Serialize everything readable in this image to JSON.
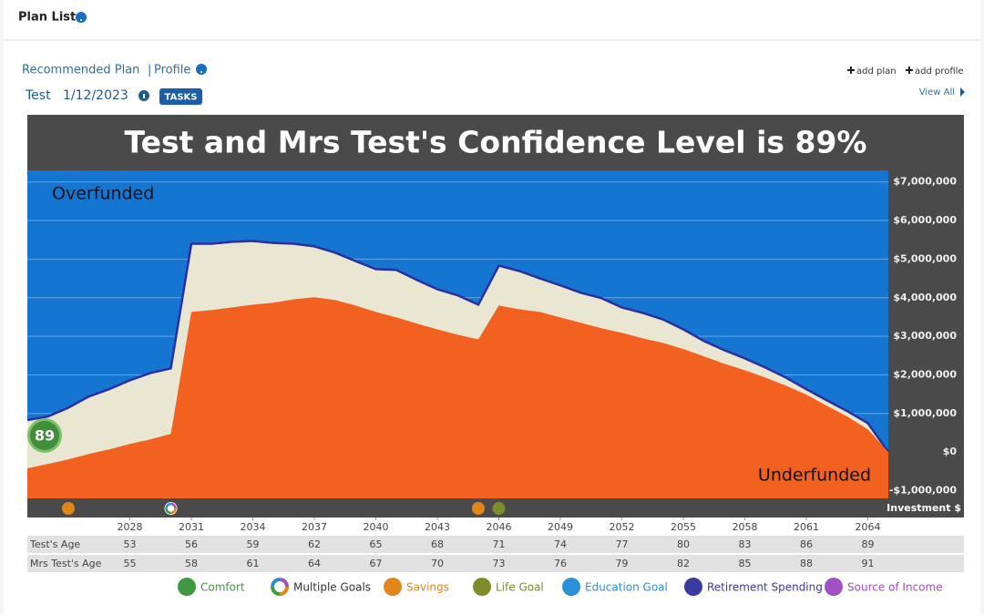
{
  "page": {
    "title": "Plan List",
    "tabs": [
      "Recommended Plan",
      "Profile"
    ],
    "actions": [
      "add plan",
      "add profile"
    ],
    "plan_name": "Test",
    "plan_date": "1/12/2023",
    "tasks": "TASKS",
    "view_all": "View All"
  },
  "chart_data": {
    "type": "area",
    "title": "Test and Mrs Test's Confidence Level is 89%",
    "background": "#1576d2",
    "x": [
      2023,
      2024,
      2025,
      2026,
      2027,
      2028,
      2029,
      2030,
      2031,
      2032,
      2033,
      2034,
      2035,
      2036,
      2037,
      2038,
      2039,
      2040,
      2041,
      2042,
      2043,
      2044,
      2045,
      2046,
      2047,
      2048,
      2049,
      2050,
      2051,
      2052,
      2053,
      2054,
      2055,
      2056,
      2057,
      2058,
      2059,
      2060,
      2061,
      2062,
      2063,
      2064,
      2065
    ],
    "series": [
      {
        "color": "#e9e7d2",
        "line": "#2b2f9e",
        "values": [
          830000,
          920000,
          1150000,
          1440000,
          1630000,
          1860000,
          2050000,
          2170000,
          5400000,
          5400000,
          5450000,
          5470000,
          5420000,
          5400000,
          5330000,
          5170000,
          4950000,
          4740000,
          4720000,
          4460000,
          4220000,
          4060000,
          3820000,
          4830000,
          4690000,
          4500000,
          4320000,
          4130000,
          3990000,
          3750000,
          3610000,
          3440000,
          3180000,
          2880000,
          2640000,
          2430000,
          2190000,
          1930000,
          1630000,
          1340000,
          1060000,
          750000,
          0
        ]
      },
      {
        "color": "#f2611f",
        "values": [
          -420000,
          -310000,
          -190000,
          -50000,
          70000,
          210000,
          330000,
          470000,
          3630000,
          3680000,
          3750000,
          3820000,
          3870000,
          3960000,
          4010000,
          3940000,
          3800000,
          3630000,
          3490000,
          3330000,
          3180000,
          3040000,
          2920000,
          3800000,
          3700000,
          3630000,
          3490000,
          3350000,
          3210000,
          3090000,
          2950000,
          2830000,
          2670000,
          2480000,
          2290000,
          2120000,
          1930000,
          1720000,
          1490000,
          1200000,
          920000,
          590000,
          0
        ]
      }
    ],
    "xlim": [
      2023,
      2065
    ],
    "xticks": [
      2028,
      2031,
      2034,
      2037,
      2040,
      2043,
      2046,
      2049,
      2052,
      2055,
      2058,
      2061,
      2064
    ],
    "ylim": [
      -1200000,
      7300000
    ],
    "yticks": [
      {
        "value": 7000000,
        "label": "$7,000,000"
      },
      {
        "value": 6000000,
        "label": "$6,000,000"
      },
      {
        "value": 5000000,
        "label": "$5,000,000"
      },
      {
        "value": 4000000,
        "label": "$4,000,000"
      },
      {
        "value": 3000000,
        "label": "$3,000,000"
      },
      {
        "value": 2000000,
        "label": "$2,000,000"
      },
      {
        "value": 1000000,
        "label": "$1,000,000"
      },
      {
        "value": 0,
        "label": "$0"
      },
      {
        "value": -1000000,
        "label": "-$1,000,000"
      }
    ],
    "grid": true,
    "y_label": "Investment $",
    "annotations": [
      "Overfunded",
      "Underfunded"
    ],
    "confidence": 89,
    "markers": [
      {
        "x": 2025,
        "color": "#e0861a"
      },
      {
        "x": 2030,
        "color": "#ffffff",
        "ring": true
      },
      {
        "x": 2045,
        "color": "#e0861a"
      },
      {
        "x": 2046,
        "color": "#7f8c2a"
      }
    ],
    "table": {
      "rows": [
        {
          "label": "Test's Age",
          "values": [
            53,
            56,
            59,
            62,
            65,
            68,
            71,
            74,
            77,
            80,
            83,
            86,
            89
          ]
        },
        {
          "label": "Mrs Test's Age",
          "values": [
            55,
            58,
            61,
            64,
            67,
            70,
            73,
            76,
            79,
            82,
            85,
            88,
            91
          ]
        }
      ]
    },
    "legend": [
      {
        "label": "Comfort",
        "color": "#3f9a3f"
      },
      {
        "label": "Multiple Goals",
        "color": "#333333",
        "ring": true
      },
      {
        "label": "Savings",
        "color": "#e0861a"
      },
      {
        "label": "Life Goal",
        "color": "#7f8c2a"
      },
      {
        "label": "Education Goal",
        "color": "#2a90d8"
      },
      {
        "label": "Retirement Spending",
        "color": "#3a3aa0"
      },
      {
        "label": "Source of Income",
        "color": "#a050c0"
      }
    ]
  }
}
